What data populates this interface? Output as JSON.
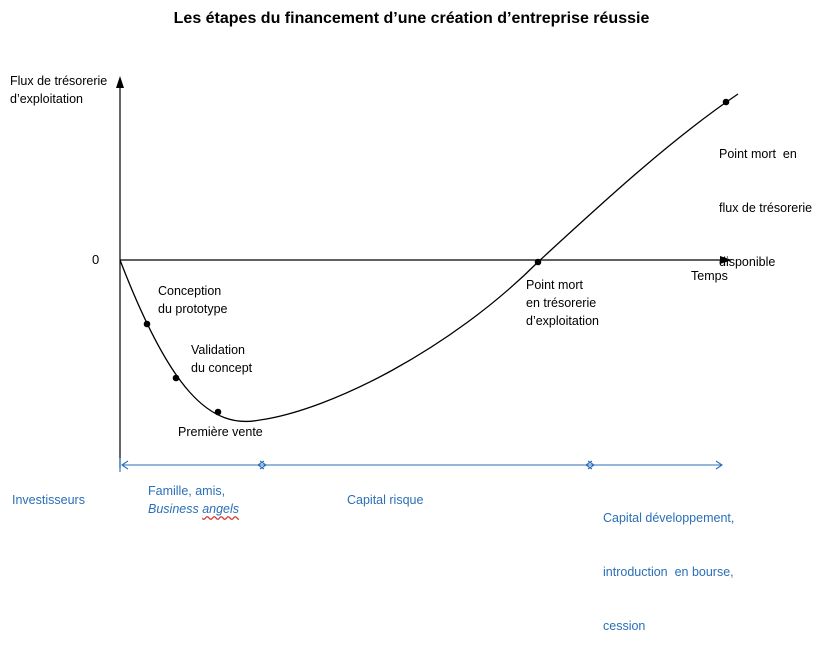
{
  "title": "Les étapes du financement d’une création d’entreprise réussie",
  "axes": {
    "y_label_line1": "Flux de trésorerie",
    "y_label_line2": "d’exploitation",
    "x_label": "Temps",
    "zero_label": "0"
  },
  "points": {
    "conception": [
      "Conception",
      "du prototype"
    ],
    "validation": [
      "Validation",
      "du concept"
    ],
    "premiere_vente": "Première vente",
    "point_mort_exploitation": [
      "Point mort",
      "en trésorerie",
      "d’exploitation"
    ],
    "point_mort_disponible": [
      "Point mort  en",
      "flux de trésorerie",
      "disponible"
    ]
  },
  "financing": {
    "row_label": "Investisseurs",
    "phase1_line1": "Famille, amis,",
    "phase1_line2": "Business angels",
    "phase2": "Capital risque",
    "phase3": [
      "Capital développement,",
      "introduction  en bourse,",
      "cession"
    ]
  },
  "colors": {
    "axis": "#000000",
    "financing": "#2a6fb7"
  }
}
